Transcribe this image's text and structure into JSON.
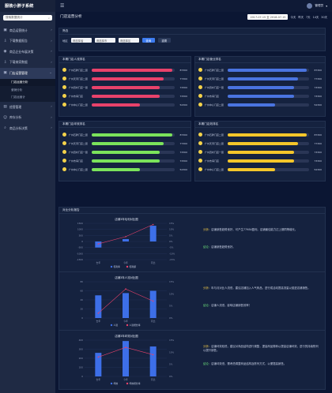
{
  "app": {
    "title": "服装小胖子系统"
  },
  "search": {
    "placeholder": "搜索数据统计"
  },
  "sidebar": {
    "items": [
      {
        "label": "商品运营统计",
        "icon": "store-icon"
      },
      {
        "label": "下载数据报告",
        "icon": "download-icon"
      },
      {
        "label": "商品企业布展决策",
        "icon": "location-icon"
      },
      {
        "label": "下载商家数据",
        "icon": "download-icon"
      },
      {
        "label": "门店运营管理",
        "icon": "store-icon"
      }
    ],
    "sub": [
      "门店运营分析",
      "营销分析",
      "门店运营计"
    ],
    "items2": [
      {
        "label": "经营管理",
        "icon": "folder-icon"
      },
      {
        "label": "库存分析",
        "icon": "user-icon"
      },
      {
        "label": "商品分析决策",
        "icon": "search-icon"
      }
    ]
  },
  "topbar": {
    "user": "管理员"
  },
  "page": {
    "title": "门店运营分析"
  },
  "dates": {
    "range": "2017-07-15 至 2018-07-15",
    "quick": [
      "今天",
      "昨天",
      "7天",
      "14天",
      "30天"
    ]
  },
  "filter": {
    "title": "筛选",
    "area_label": "地区",
    "select1": "请选择省",
    "select2": "请选择市",
    "select3": "请选择区",
    "search_btn": "查询",
    "reset_btn": "重置"
  },
  "panels": [
    {
      "title": "本期门店人流排名",
      "color": "#e8426b",
      "rows": [
        [
          "广州石牌门店二层",
          87300
        ],
        [
          "广州天河门店二层",
          77300
        ],
        [
          "广州员村门店一层",
          73300
        ],
        [
          "广州市海门店",
          73300
        ],
        [
          "广州中心门店二层",
          52300
        ]
      ]
    },
    {
      "title": "本期门店营业排名",
      "color": "#4a74e0",
      "rows": [
        [
          "广州石牌门店二层",
          87300
        ],
        [
          "广州天河门店二层",
          77300
        ],
        [
          "广州员村门店一层",
          73300
        ],
        [
          "广州市海门店",
          73300
        ],
        [
          "广州中心门店二层",
          52300
        ]
      ]
    },
    {
      "title": "本期门店坪效排名",
      "color": "#7be35b",
      "rows": [
        [
          "广州石牌门店二层",
          87300
        ],
        [
          "广州天河门店二层",
          77300
        ],
        [
          "广州员村门店一层",
          73300
        ],
        [
          "广州市海门店",
          73300
        ],
        [
          "广州中心门店二层",
          52300
        ]
      ]
    },
    {
      "title": "本期门店效排名",
      "color": "#f4c62a",
      "rows": [
        [
          "广州石牌门店二层",
          87300
        ],
        [
          "广州天河门店二层",
          77300
        ],
        [
          "广州员村门店一层",
          73300
        ],
        [
          "广州市海门店",
          73300
        ],
        [
          "广州中心门店二层",
          52300
        ]
      ]
    }
  ],
  "analysis": {
    "title": "对比分析报告",
    "charts": [
      {
        "title": "店铺3年毛利对比图",
        "categories": [
          "去年",
          "今年",
          "同比"
        ],
        "series": [
          {
            "name": "毛利率",
            "type": "bar",
            "values": [
              -500,
              200,
              1300
            ],
            "color": "#3d6fe8"
          },
          {
            "name": "毛利额",
            "type": "line",
            "values": [
              -0.02,
              0.04,
              0.14
            ],
            "color": "#e8426b"
          }
        ],
        "ylim": [
          -1500,
          1500
        ],
        "y2lim": [
          -0.15,
          0.15
        ],
        "yticks": [
          "1500",
          "1000",
          "500",
          "0",
          "-500",
          "-1000",
          "-1500"
        ],
        "y2ticks": [
          "15%",
          "10%",
          "5%",
          "0%",
          "-5%",
          "-10%",
          "-15%"
        ],
        "note1_tag": "分析：",
        "note1": "店铺销售趋势良好，可产生77984盈利。店铺最佳能力达上期同等增长。",
        "note2_tag": "结论：",
        "note2": "店铺销售趋势良好。"
      },
      {
        "title": "店铺3年人流对比图",
        "categories": [
          "去年",
          "今年",
          "同比"
        ],
        "series": [
          {
            "name": "人流",
            "type": "bar",
            "values": [
              50,
              55,
              60
            ],
            "color": "#3d6fe8"
          },
          {
            "name": "人流增长率",
            "type": "line",
            "values": [
              0.02,
              0.12,
              0.07
            ],
            "color": "#e8426b"
          }
        ],
        "ylim": [
          0,
          80
        ],
        "y2lim": [
          0,
          0.15
        ],
        "yticks": [
          "80",
          "60",
          "40",
          "20",
          "0"
        ],
        "y2ticks": [
          "15%",
          "10%",
          "5%",
          "0%"
        ],
        "note1_tag": "分析：",
        "note1": "年与月对比人流低，建议店铺加入人气商品，进行成活动提高流量以促进店铺销售。",
        "note2_tag": "结论：",
        "note2": "店铺人流低，影响店铺销售效率！"
      },
      {
        "title": "店铺3年坪效对比图",
        "categories": [
          "去年",
          "今年",
          "同比"
        ],
        "series": [
          {
            "name": "坪效",
            "type": "bar",
            "values": [
              260,
              390,
              330
            ],
            "color": "#3d6fe8"
          },
          {
            "name": "坪效增长率",
            "type": "line",
            "values": [
              0.08,
              0.12,
              0.09
            ],
            "color": "#e8426b"
          }
        ],
        "ylim": [
          0,
          400
        ],
        "y2lim": [
          0,
          0.15
        ],
        "yticks": [
          "400",
          "300",
          "200",
          "100",
          "0"
        ],
        "y2ticks": [
          "15%",
          "10%",
          "5%",
          "0%"
        ],
        "note1_tag": "分析：",
        "note1": "店铺坪效较低，建议对商品结构进行调整，提高商品周转以提高店铺坪效，进行的持续陈列以提升销售。",
        "note2_tag": "结论：",
        "note2": "店铺坪效低，需考虑调整商品结构及陈列方式，以便提高销售。"
      }
    ]
  }
}
